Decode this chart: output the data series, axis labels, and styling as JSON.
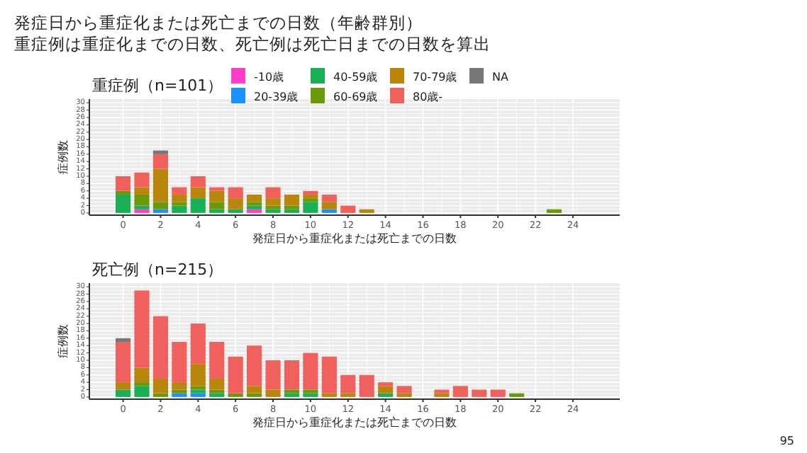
{
  "chart_data": [
    {
      "type": "bar",
      "stacked": true,
      "title": "重症例（n=101）",
      "annotations": [
        "発症日から重症化または死亡までの日数（年齢群別）",
        "重症例は重症化までの日数、死亡例は死亡日までの日数を算出"
      ],
      "xlabel": "発症日から重症化または死亡までの日数",
      "ylabel": "症例数",
      "x": [
        0,
        1,
        2,
        3,
        4,
        5,
        6,
        7,
        8,
        9,
        10,
        11,
        12,
        13,
        23
      ],
      "xlim": [
        -1.8,
        26.5
      ],
      "xticks": [
        0,
        2,
        4,
        6,
        8,
        10,
        12,
        14,
        16,
        18,
        20,
        22,
        24
      ],
      "ylim": [
        -0.6,
        31
      ],
      "yticks": [
        0,
        2,
        4,
        6,
        8,
        10,
        12,
        14,
        16,
        18,
        20,
        22,
        24,
        26,
        28,
        30
      ],
      "grid": true,
      "legend": "top",
      "series": [
        {
          "name": "-10歳",
          "color": "#ff3fc8",
          "values": [
            0,
            1,
            0,
            0,
            0,
            0,
            0,
            1,
            0,
            0,
            0,
            0,
            0,
            0,
            0
          ]
        },
        {
          "name": "20-39歳",
          "color": "#1e90ff",
          "values": [
            0,
            0,
            1,
            0,
            0,
            0,
            0,
            0,
            0,
            0,
            0,
            1,
            0,
            0,
            0
          ]
        },
        {
          "name": "40-59歳",
          "color": "#1aaf54",
          "values": [
            5,
            1,
            0,
            2,
            4,
            1,
            1,
            1,
            1,
            1,
            3,
            0,
            0,
            0,
            0
          ]
        },
        {
          "name": "60-69歳",
          "color": "#6a9a0a",
          "values": [
            1,
            3,
            2,
            1,
            0,
            2,
            0,
            1,
            1,
            1,
            1,
            0,
            0,
            0,
            1
          ]
        },
        {
          "name": "70-79歳",
          "color": "#b8860b",
          "values": [
            0,
            2,
            9,
            2,
            3,
            3,
            3,
            2,
            2,
            3,
            1,
            2,
            0,
            1,
            0
          ]
        },
        {
          "name": "80歳-",
          "color": "#f0605d",
          "values": [
            4,
            4,
            4,
            2,
            3,
            1,
            3,
            0,
            3,
            0,
            1,
            2,
            2,
            0,
            0
          ]
        },
        {
          "name": "NA",
          "color": "#777777",
          "values": [
            0,
            0,
            1,
            0,
            0,
            0,
            0,
            0,
            0,
            0,
            0,
            0,
            0,
            0,
            0
          ]
        }
      ]
    },
    {
      "type": "bar",
      "stacked": true,
      "title": "死亡例（n=215）",
      "annotations": [
        "95"
      ],
      "xlabel": "発症日から重症化または死亡までの日数",
      "ylabel": "症例数",
      "x": [
        0,
        1,
        2,
        3,
        4,
        5,
        6,
        7,
        8,
        9,
        10,
        11,
        12,
        13,
        14,
        15,
        17,
        18,
        19,
        20,
        21
      ],
      "xlim": [
        -1.8,
        26.5
      ],
      "xticks": [
        0,
        2,
        4,
        6,
        8,
        10,
        12,
        14,
        16,
        18,
        20,
        22,
        24
      ],
      "ylim": [
        -0.6,
        31
      ],
      "yticks": [
        0,
        2,
        4,
        6,
        8,
        10,
        12,
        14,
        16,
        18,
        20,
        22,
        24,
        26,
        28,
        30
      ],
      "grid": true,
      "series": [
        {
          "color": "#1e90ff",
          "values": [
            0,
            0,
            0,
            1,
            1,
            0,
            0,
            0,
            0,
            0,
            0,
            0,
            0,
            0,
            0,
            0,
            0,
            0,
            0,
            0,
            0
          ]
        },
        {
          "color": "#1aaf54",
          "values": [
            2,
            3,
            0,
            0,
            1,
            1,
            0,
            0,
            0,
            1,
            1,
            0,
            0,
            0,
            1,
            0,
            0,
            0,
            0,
            0,
            0
          ]
        },
        {
          "color": "#6a9a0a",
          "values": [
            0,
            1,
            1,
            1,
            1,
            1,
            1,
            1,
            0,
            1,
            1,
            0,
            0,
            0,
            0,
            0,
            0,
            0,
            0,
            0,
            1
          ]
        },
        {
          "color": "#b8860b",
          "values": [
            2,
            4,
            4,
            2,
            6,
            3,
            0,
            2,
            2,
            0,
            0,
            1,
            1,
            0,
            2,
            1,
            1,
            0,
            0,
            0,
            0
          ]
        },
        {
          "color": "#f0605d",
          "values": [
            11,
            21,
            17,
            11,
            11,
            10,
            10,
            11,
            8,
            8,
            10,
            10,
            5,
            6,
            1,
            2,
            1,
            3,
            2,
            2,
            0
          ]
        },
        {
          "color": "#777777",
          "values": [
            1,
            0,
            0,
            0,
            0,
            0,
            0,
            0,
            0,
            0,
            0,
            0,
            0,
            0,
            0,
            0,
            0,
            0,
            0,
            0,
            0
          ]
        }
      ]
    }
  ]
}
